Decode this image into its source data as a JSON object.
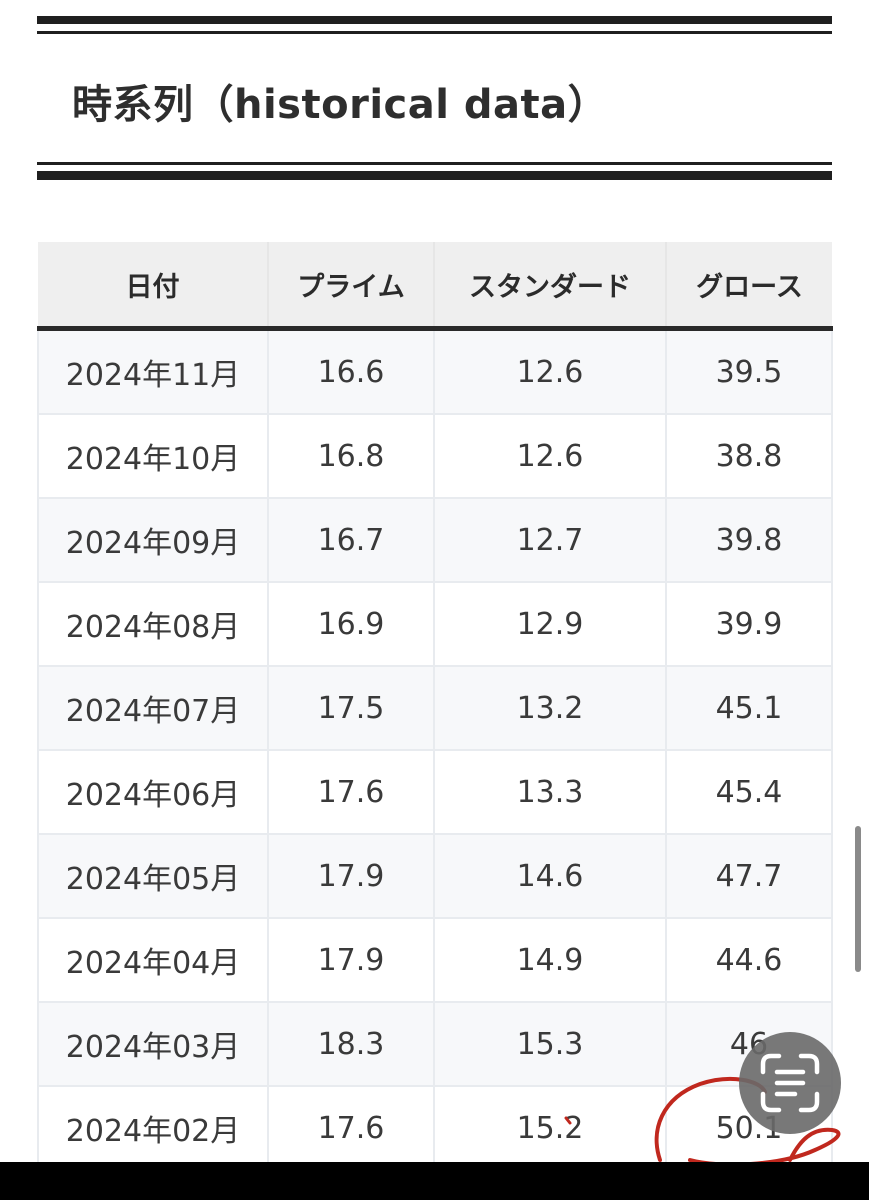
{
  "heading": "時系列（historical data）",
  "table": {
    "headers": [
      "日付",
      "プライム",
      "スタンダード",
      "グロース"
    ],
    "rows": [
      [
        "2024年11月",
        "16.6",
        "12.6",
        "39.5"
      ],
      [
        "2024年10月",
        "16.8",
        "12.6",
        "38.8"
      ],
      [
        "2024年09月",
        "16.7",
        "12.7",
        "39.8"
      ],
      [
        "2024年08月",
        "16.9",
        "12.9",
        "39.9"
      ],
      [
        "2024年07月",
        "17.5",
        "13.2",
        "45.1"
      ],
      [
        "2024年06月",
        "17.6",
        "13.3",
        "45.4"
      ],
      [
        "2024年05月",
        "17.9",
        "14.6",
        "47.7"
      ],
      [
        "2024年04月",
        "17.9",
        "14.9",
        "44.6"
      ],
      [
        "2024年03月",
        "18.3",
        "15.3",
        "46"
      ],
      [
        "2024年02月",
        "17.6",
        "15.2",
        "50.1"
      ]
    ]
  },
  "overlays": {
    "lens_icon": "text-scan-icon",
    "annotation_color": "#c0281e"
  }
}
